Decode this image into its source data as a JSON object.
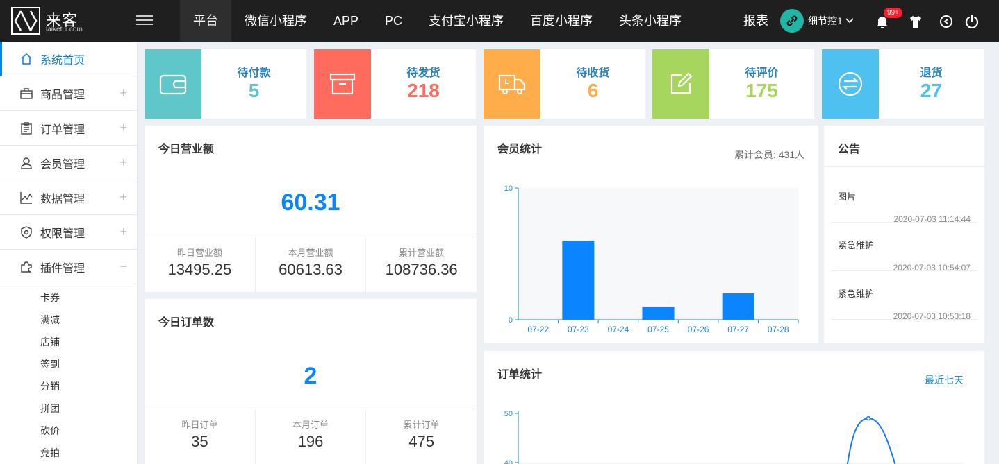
{
  "header": {
    "logo_title": "来客",
    "logo_sub": "laiketui.com",
    "nav_tabs": [
      "平台",
      "微信小程序",
      "APP",
      "PC",
      "支付宝小程序",
      "百度小程序",
      "头条小程序"
    ],
    "report": "报表",
    "user_name": "细节控1",
    "badge": "99+"
  },
  "sidebar": {
    "items": [
      {
        "label": "系统首页",
        "icon": "home-icon"
      },
      {
        "label": "商品管理",
        "icon": "briefcase-icon",
        "toggle": "+"
      },
      {
        "label": "订单管理",
        "icon": "clipboard-icon",
        "toggle": "+"
      },
      {
        "label": "会员管理",
        "icon": "user-icon",
        "toggle": "+"
      },
      {
        "label": "数据管理",
        "icon": "linechart-icon",
        "toggle": "+"
      },
      {
        "label": "权限管理",
        "icon": "shield-icon",
        "toggle": "+"
      },
      {
        "label": "插件管理",
        "icon": "puzzle-icon",
        "toggle": "−"
      }
    ],
    "sub_items": [
      "卡券",
      "满减",
      "店铺",
      "签到",
      "分销",
      "拼团",
      "砍价",
      "竞拍"
    ]
  },
  "stats": [
    {
      "label": "待付款",
      "value": "5",
      "color": "#5fc7c9",
      "icon": "wallet-icon"
    },
    {
      "label": "待发货",
      "value": "218",
      "color": "#ff6b5d",
      "icon": "box-icon"
    },
    {
      "label": "待收货",
      "value": "6",
      "color": "#ffad4a",
      "icon": "truck-icon"
    },
    {
      "label": "待评价",
      "value": "175",
      "color": "#a7d65f",
      "icon": "edit-icon"
    },
    {
      "label": "退货",
      "value": "27",
      "color": "#4fc1f0",
      "icon": "exchange-icon"
    }
  ],
  "revenue": {
    "title": "今日营业额",
    "value": "60.31",
    "items": [
      {
        "label": "昨日营业额",
        "value": "13495.25"
      },
      {
        "label": "本月营业额",
        "value": "60613.63"
      },
      {
        "label": "累计营业额",
        "value": "108736.36"
      }
    ]
  },
  "orders": {
    "title": "今日订单数",
    "value": "2",
    "items": [
      {
        "label": "昨日订单",
        "value": "35"
      },
      {
        "label": "本月订单",
        "value": "196"
      },
      {
        "label": "累计订单",
        "value": "475"
      }
    ]
  },
  "member": {
    "title": "会员统计",
    "total": "累计会员: 431人"
  },
  "notice": {
    "title": "公告",
    "items": [
      {
        "title": "图片",
        "date": "2020-07-03 11:14:44"
      },
      {
        "title": "紧急维护",
        "date": "2020-07-03 10:54:07"
      },
      {
        "title": "紧急维护",
        "date": "2020-07-03 10:53:18"
      }
    ]
  },
  "order_stats": {
    "title": "订单统计",
    "range": "最近七天"
  },
  "chart_data": [
    {
      "type": "bar",
      "title": "会员统计",
      "categories": [
        "07-22",
        "07-23",
        "07-24",
        "07-25",
        "07-26",
        "07-27",
        "07-28"
      ],
      "values": [
        0,
        6,
        0,
        1,
        0,
        2,
        0
      ],
      "ylim": [
        0,
        10
      ],
      "yticks": [
        0,
        10
      ],
      "color": "#0a84ff"
    },
    {
      "type": "line",
      "title": "订单统计",
      "yticks": [
        40,
        50
      ],
      "visible_ylim": [
        38,
        50
      ],
      "peak_value": 49,
      "color": "#1677ff"
    }
  ]
}
